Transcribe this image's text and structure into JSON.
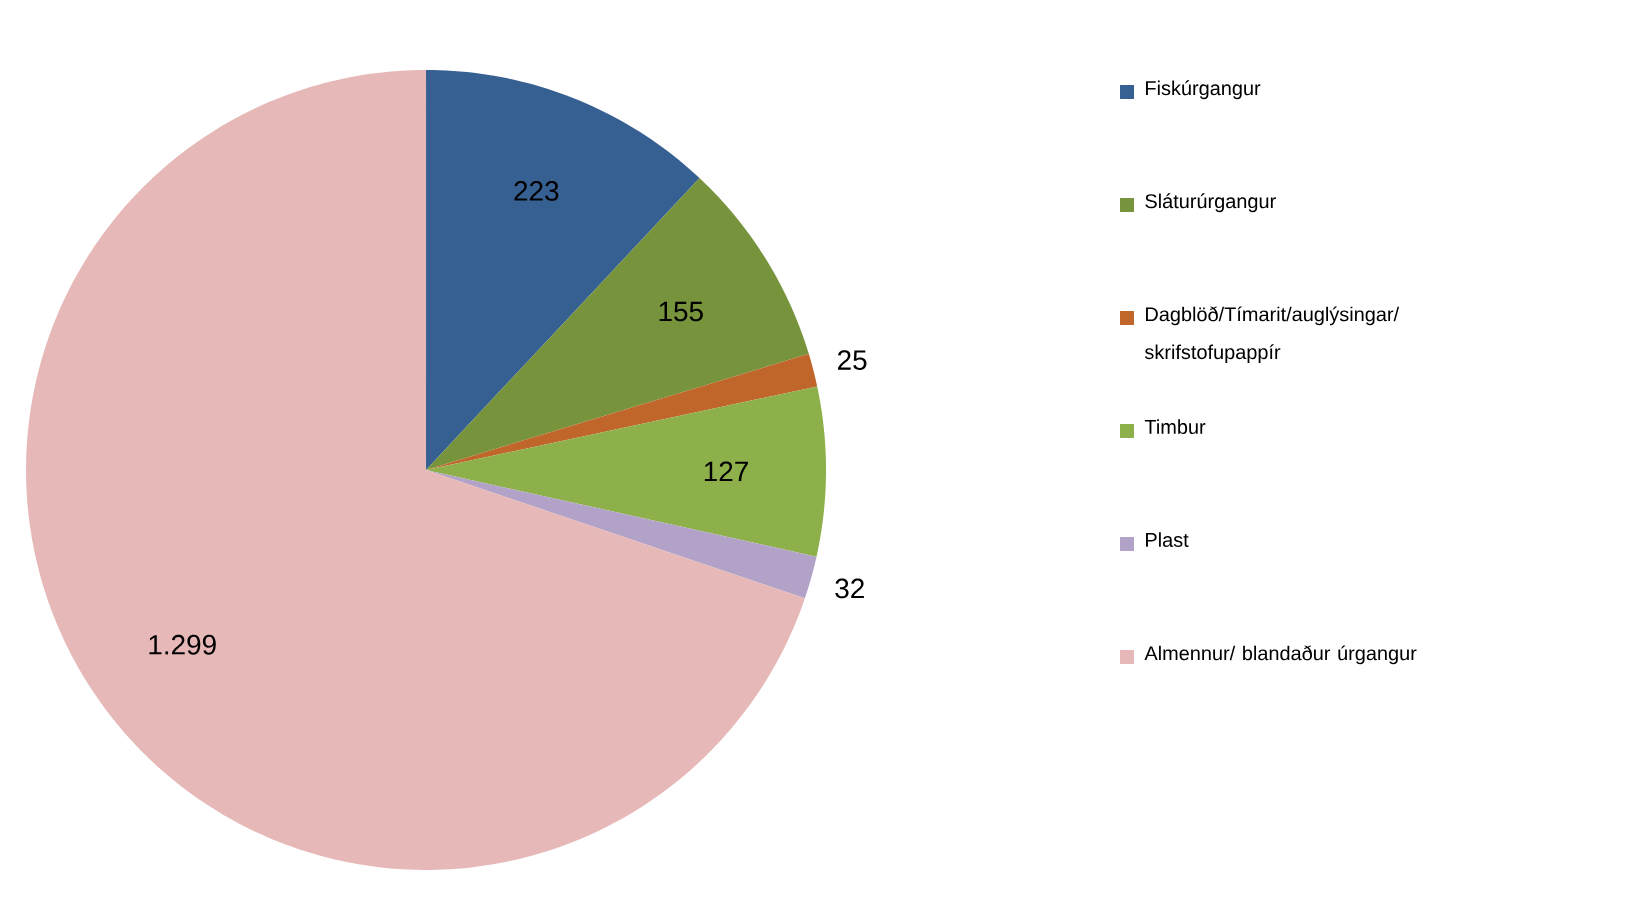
{
  "chart_data": {
    "type": "pie",
    "categories": [
      "Fiskúrgangur",
      "Sláturúrgangur",
      "Dagblöð/Tímarit/auglýsingar/ skrifstofupappír",
      "Timbur",
      "Plast",
      "Almennur/ blandaður úrgangur"
    ],
    "values": [
      223,
      155,
      25,
      127,
      32,
      1299
    ],
    "value_labels": [
      "223",
      "155",
      "25",
      "127",
      "32",
      "1.299"
    ],
    "colors": [
      "#376092",
      "#77933c",
      "#c0662a",
      "#8db04a",
      "#b3a2c7",
      "#e6b9b8"
    ],
    "legend": "right"
  }
}
